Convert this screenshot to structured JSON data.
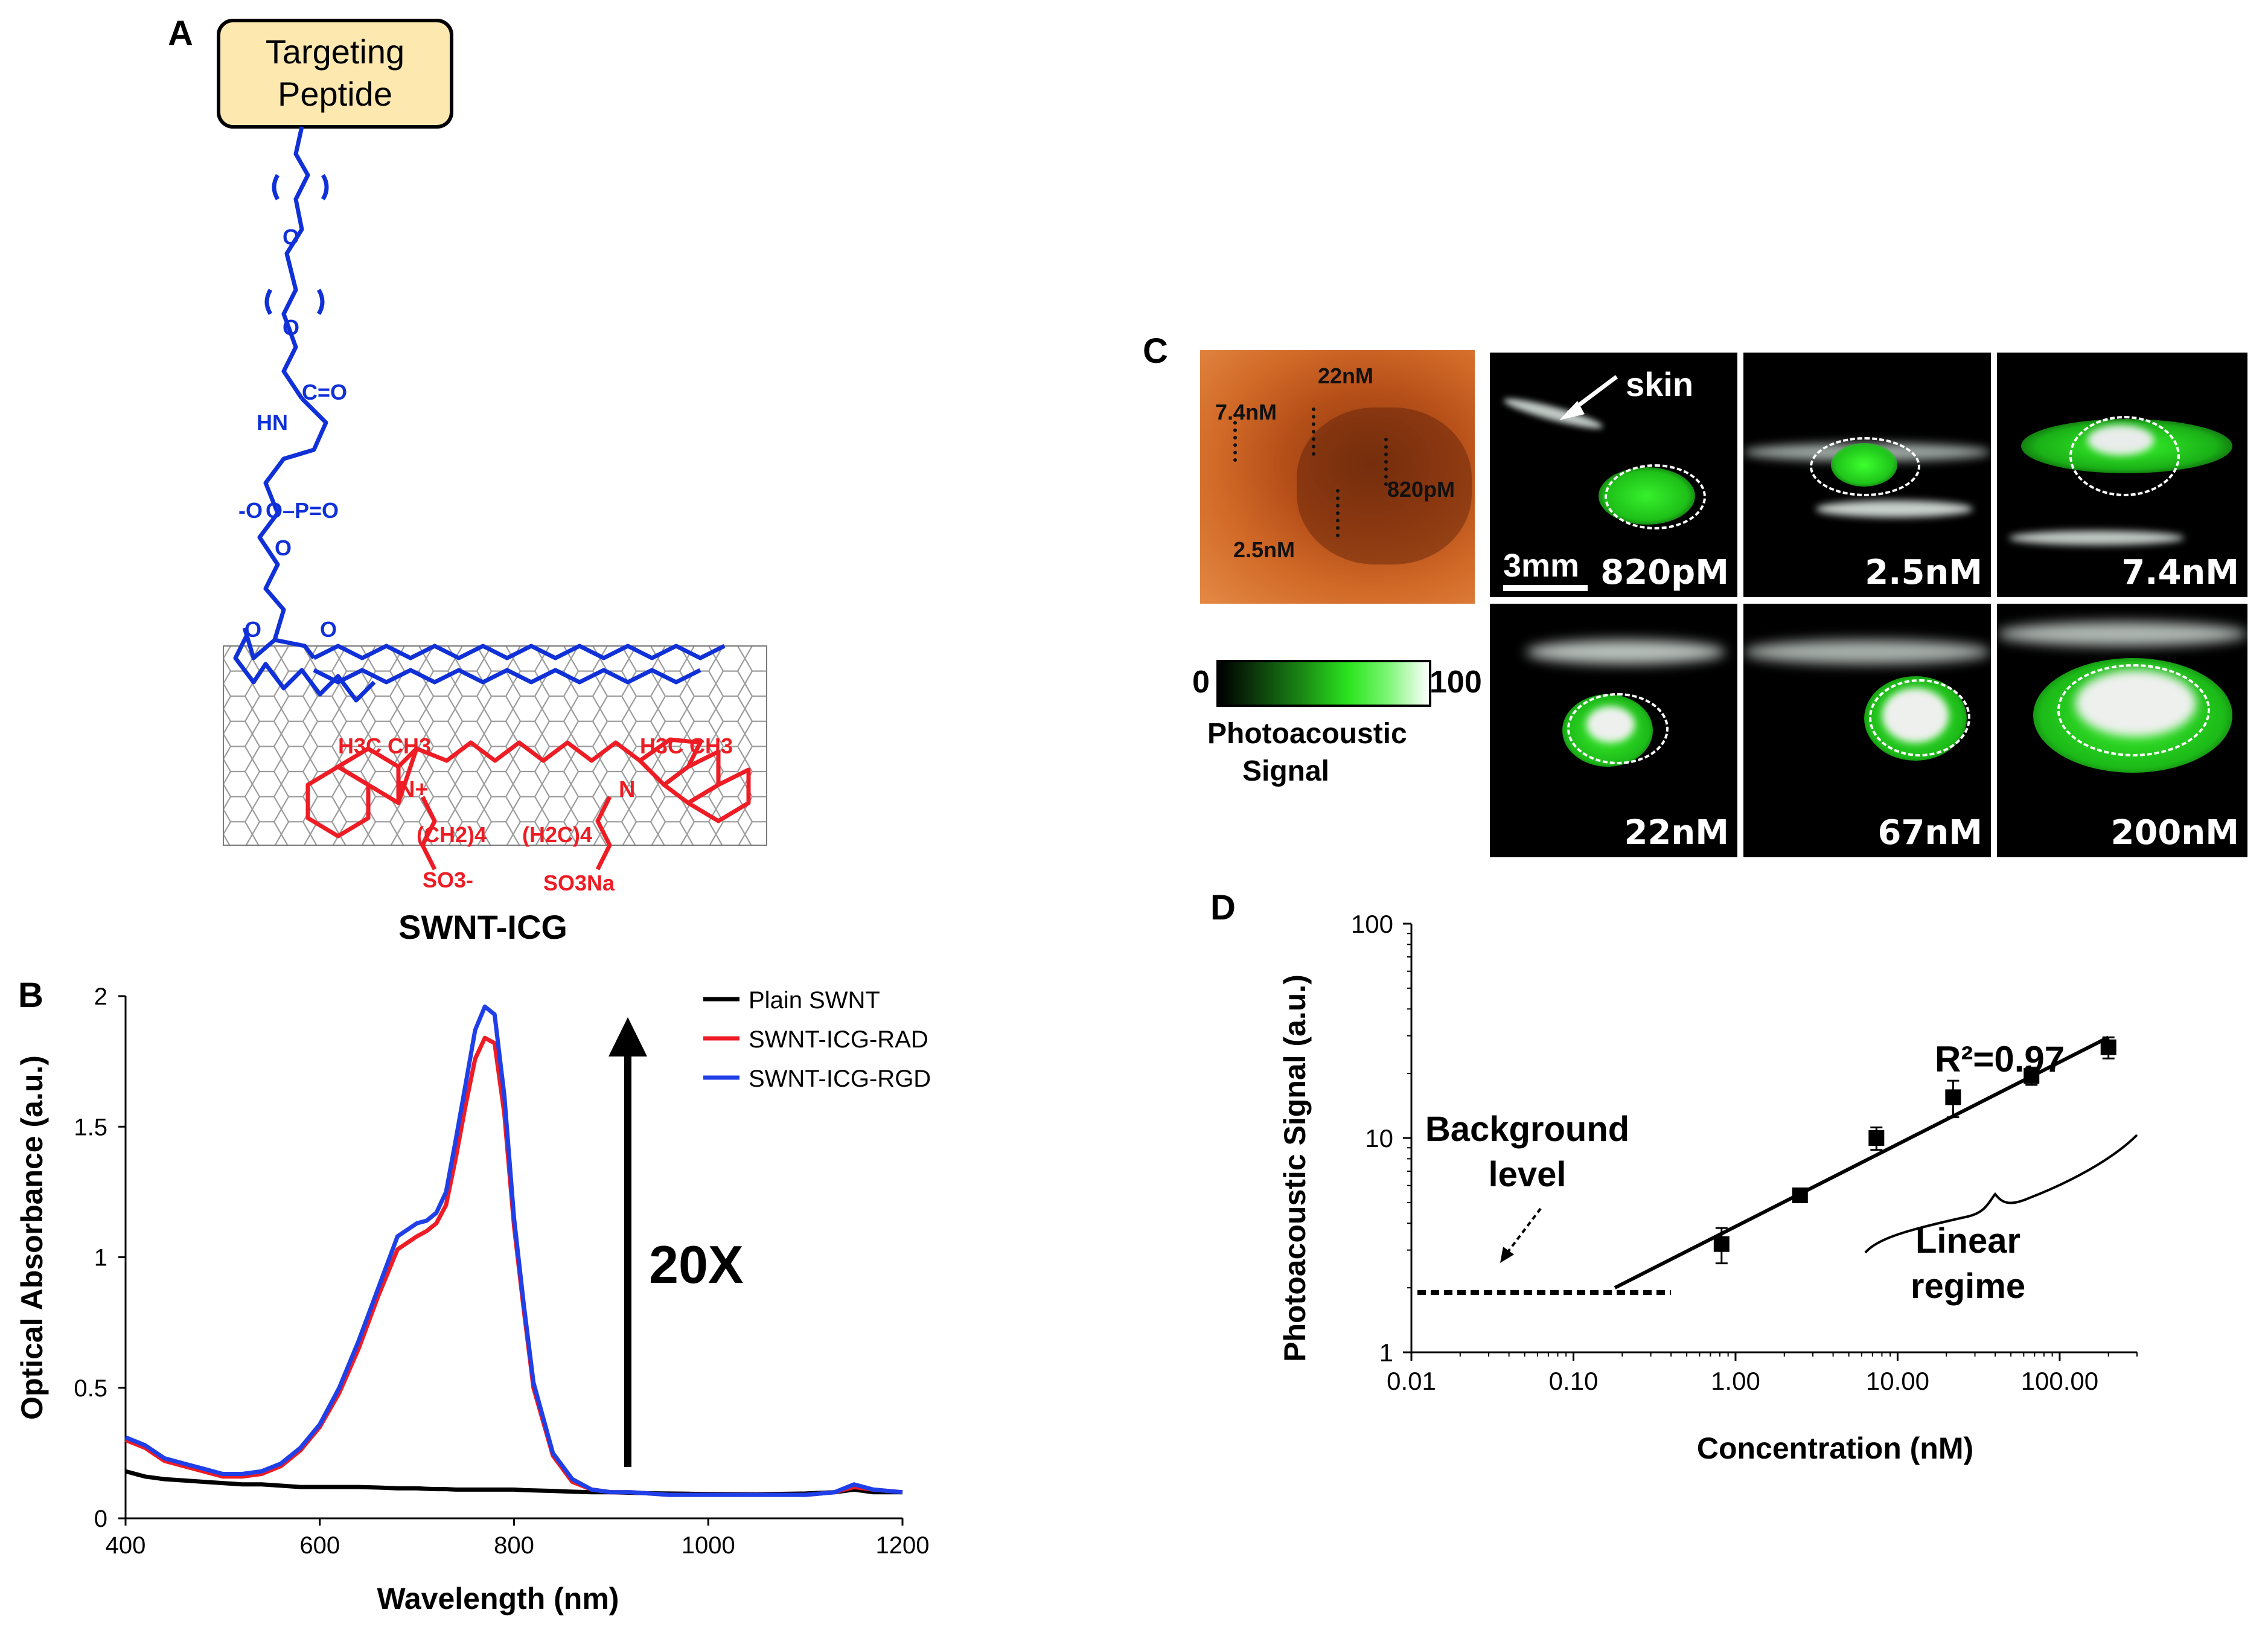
{
  "panels": {
    "a": "A",
    "b": "B",
    "c": "C",
    "d": "D"
  },
  "structure": {
    "box_line1": "Targeting",
    "box_line2": "Peptide",
    "name": "SWNT-ICG",
    "o1": "O",
    "o2": "O",
    "o3": "O",
    "hn": "HN",
    "co": "C=O",
    "phos": "O–P=O",
    "phos_o_minus": "-O",
    "dye_h3c_ch3_left": "H3C CH3",
    "dye_h3c_ch3_right": "H3C CH3",
    "dye_n_plus": "N+",
    "dye_n": "N",
    "dye_chain_left": "(CH2)4",
    "dye_chain_right": "(H2C)4",
    "dye_so3": "SO3-",
    "dye_so3na": "SO3Na",
    "colors": {
      "peg": "#1030d8",
      "dye": "#ee1c24",
      "box_fill": "#fde8b0",
      "tube": "#9a9a9a"
    }
  },
  "panel_c": {
    "photo_labels": [
      "22nM",
      "7.4nM",
      "820pM",
      "2.5nM"
    ],
    "skin_label": "skin",
    "scale_label": "3mm",
    "images": [
      {
        "label": "820pM"
      },
      {
        "label": "2.5nM"
      },
      {
        "label": "7.4nM"
      },
      {
        "label": "22nM"
      },
      {
        "label": "67nM"
      },
      {
        "label": "200nM"
      }
    ],
    "colorbar_min": "0",
    "colorbar_max": "100",
    "colorbar_title1": "Photoacoustic",
    "colorbar_title2": "Signal"
  },
  "chart_data": [
    {
      "type": "line",
      "title": "",
      "xlabel": "Wavelength (nm)",
      "ylabel": "Optical Absorbance (a.u.)",
      "xlim": [
        400,
        1200
      ],
      "ylim": [
        0,
        2
      ],
      "xticks": [
        "400",
        "600",
        "800",
        "1000",
        "1200"
      ],
      "yticks": [
        "0",
        "0.5",
        "1",
        "1.5",
        "2"
      ],
      "legend": [
        "Plain SWNT",
        "SWNT-ICG-RAD",
        "SWNT-ICG-RGD"
      ],
      "legend_position": "top-right",
      "annotation": "20X",
      "x": [
        400,
        420,
        440,
        460,
        480,
        500,
        520,
        540,
        560,
        580,
        600,
        620,
        640,
        660,
        680,
        700,
        710,
        720,
        730,
        740,
        750,
        760,
        770,
        780,
        790,
        800,
        810,
        820,
        840,
        860,
        880,
        900,
        920,
        940,
        960,
        980,
        1000,
        1050,
        1100,
        1130,
        1150,
        1170,
        1200
      ],
      "series": [
        {
          "name": "Plain SWNT",
          "color": "#000000",
          "values": [
            0.18,
            0.16,
            0.15,
            0.145,
            0.14,
            0.135,
            0.13,
            0.13,
            0.125,
            0.12,
            0.12,
            0.12,
            0.12,
            0.118,
            0.115,
            0.115,
            0.113,
            0.112,
            0.112,
            0.11,
            0.11,
            0.11,
            0.11,
            0.11,
            0.11,
            0.11,
            0.108,
            0.107,
            0.105,
            0.102,
            0.1,
            0.1,
            0.098,
            0.096,
            0.095,
            0.094,
            0.093,
            0.092,
            0.095,
            0.1,
            0.11,
            0.1,
            0.1
          ]
        },
        {
          "name": "SWNT-ICG-RAD",
          "color": "#ee1c24",
          "values": [
            0.3,
            0.27,
            0.22,
            0.2,
            0.18,
            0.16,
            0.16,
            0.17,
            0.2,
            0.26,
            0.35,
            0.48,
            0.65,
            0.85,
            1.03,
            1.08,
            1.1,
            1.13,
            1.2,
            1.38,
            1.58,
            1.76,
            1.84,
            1.82,
            1.55,
            1.12,
            0.8,
            0.5,
            0.24,
            0.14,
            0.11,
            0.1,
            0.1,
            0.095,
            0.09,
            0.09,
            0.09,
            0.09,
            0.09,
            0.1,
            0.12,
            0.11,
            0.1
          ]
        },
        {
          "name": "SWNT-ICG-RGD",
          "color": "#1f3fe8",
          "values": [
            0.31,
            0.28,
            0.23,
            0.21,
            0.19,
            0.17,
            0.17,
            0.18,
            0.21,
            0.27,
            0.36,
            0.5,
            0.68,
            0.88,
            1.08,
            1.13,
            1.14,
            1.17,
            1.25,
            1.45,
            1.66,
            1.87,
            1.96,
            1.93,
            1.62,
            1.15,
            0.82,
            0.52,
            0.25,
            0.15,
            0.11,
            0.1,
            0.1,
            0.095,
            0.09,
            0.09,
            0.09,
            0.09,
            0.09,
            0.1,
            0.13,
            0.11,
            0.1
          ]
        }
      ]
    },
    {
      "type": "scatter",
      "title": "",
      "xlabel": "Concentration (nM)",
      "ylabel": "Photoacoustic Signal (a.u.)",
      "xscale": "log",
      "yscale": "log",
      "xlim": [
        0.01,
        300
      ],
      "ylim": [
        1,
        100
      ],
      "xticks": [
        "0.01",
        "0.10",
        "1.00",
        "10.00",
        "100.00"
      ],
      "yticks": [
        "1",
        "10",
        "100"
      ],
      "x": [
        0.82,
        2.5,
        7.4,
        22,
        67,
        200
      ],
      "y": [
        3.2,
        5.4,
        10.0,
        15.5,
        19.5,
        26.5
      ],
      "yerr": [
        0.6,
        0.3,
        1.2,
        3.0,
        1.8,
        3.0
      ],
      "fit_line": {
        "x": [
          0.18,
          200
        ],
        "y": [
          2.0,
          29.5
        ]
      },
      "background_level": 1.9,
      "background_x": [
        0.01,
        0.4
      ],
      "annotations": {
        "r2": "R²=0.97",
        "background1": "Background",
        "background2": "level",
        "linear1": "Linear",
        "linear2": "regime"
      }
    }
  ]
}
